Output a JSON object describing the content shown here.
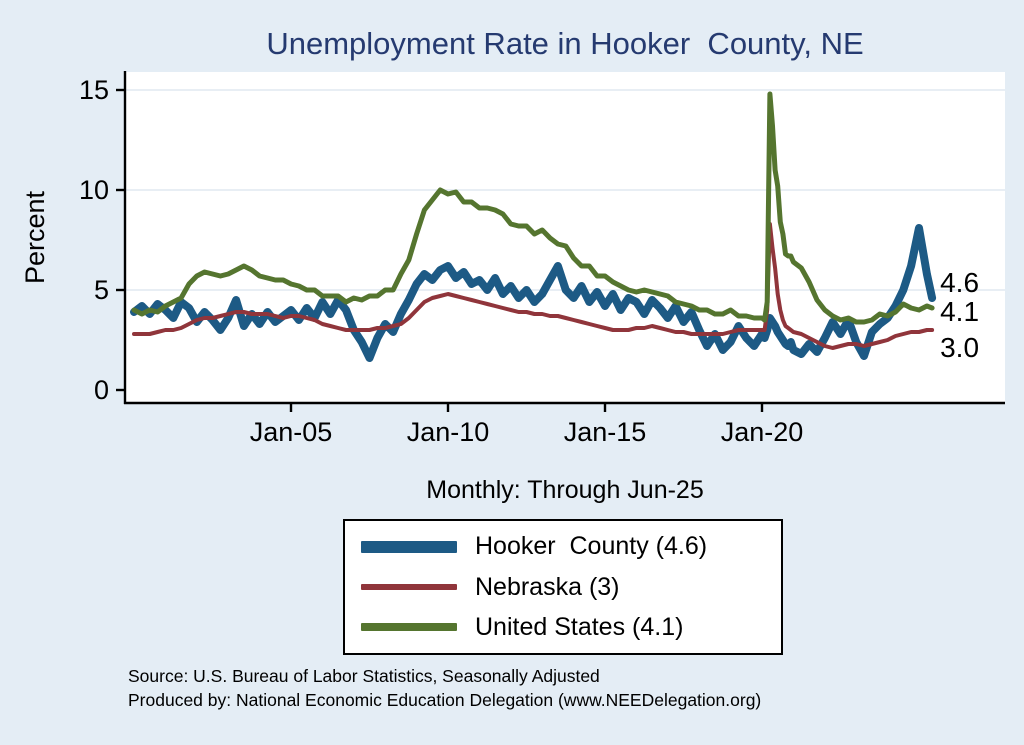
{
  "page": {
    "background": "#e4edf5"
  },
  "chart_data": {
    "type": "line",
    "title": "Unemployment Rate in Hooker  County, NE",
    "subtitle": "Monthly: Through Jun-25",
    "ylabel": "Percent",
    "xlabel": "",
    "x_unit": "decimal_year",
    "xlim": [
      1999.7,
      2026.2
    ],
    "ylim": [
      0,
      15.9
    ],
    "yticks": [
      0,
      5,
      10,
      15
    ],
    "xticks": [
      {
        "x": 2005,
        "label": "Jan-05"
      },
      {
        "x": 2010,
        "label": "Jan-10"
      },
      {
        "x": 2015,
        "label": "Jan-15"
      },
      {
        "x": 2020,
        "label": "Jan-20"
      }
    ],
    "grid_on": true,
    "grid_color": "#d9e4ee",
    "title_color": "#253a70",
    "legend_position": "below",
    "x": [
      2000,
      2000.25,
      2000.5,
      2000.75,
      2001,
      2001.25,
      2001.5,
      2001.75,
      2002,
      2002.25,
      2002.5,
      2002.75,
      2003,
      2003.25,
      2003.5,
      2003.75,
      2004,
      2004.25,
      2004.5,
      2004.75,
      2005,
      2005.25,
      2005.5,
      2005.75,
      2006,
      2006.25,
      2006.5,
      2006.75,
      2007,
      2007.25,
      2007.5,
      2007.75,
      2008,
      2008.25,
      2008.5,
      2008.75,
      2009,
      2009.25,
      2009.5,
      2009.75,
      2010,
      2010.25,
      2010.5,
      2010.75,
      2011,
      2011.25,
      2011.5,
      2011.75,
      2012,
      2012.25,
      2012.5,
      2012.75,
      2013,
      2013.25,
      2013.5,
      2013.75,
      2014,
      2014.25,
      2014.5,
      2014.75,
      2015,
      2015.25,
      2015.5,
      2015.75,
      2016,
      2016.25,
      2016.5,
      2016.75,
      2017,
      2017.25,
      2017.5,
      2017.75,
      2018,
      2018.25,
      2018.5,
      2018.75,
      2019,
      2019.25,
      2019.5,
      2019.75,
      2020,
      2020.083,
      2020.167,
      2020.25,
      2020.333,
      2020.417,
      2020.5,
      2020.583,
      2020.667,
      2020.75,
      2020.833,
      2020.917,
      2021,
      2021.25,
      2021.5,
      2021.75,
      2022,
      2022.25,
      2022.5,
      2022.75,
      2023,
      2023.25,
      2023.5,
      2023.75,
      2024,
      2024.25,
      2024.5,
      2024.75,
      2025,
      2025.25,
      2025.417
    ],
    "series": [
      {
        "name": "Hooker County",
        "legend_label": "Hooker  County (4.6)",
        "color": "#1d5a85",
        "line_width": 8,
        "end_label": "4.6",
        "end_label_y": 5.35,
        "values": [
          3.9,
          4.2,
          3.8,
          4.3,
          4.0,
          3.6,
          4.4,
          4.1,
          3.4,
          3.9,
          3.5,
          3.0,
          3.6,
          4.5,
          3.2,
          3.8,
          3.3,
          3.9,
          3.4,
          3.7,
          4.0,
          3.5,
          4.1,
          3.6,
          4.4,
          3.8,
          4.5,
          4.0,
          3.0,
          2.4,
          1.6,
          2.6,
          3.3,
          2.9,
          3.8,
          4.5,
          5.3,
          5.8,
          5.5,
          6.0,
          6.2,
          5.6,
          5.9,
          5.3,
          5.5,
          5.0,
          5.6,
          4.8,
          5.2,
          4.6,
          5.0,
          4.4,
          4.8,
          5.5,
          6.2,
          5.0,
          4.6,
          5.2,
          4.4,
          4.9,
          4.2,
          4.8,
          4.0,
          4.6,
          4.4,
          3.8,
          4.5,
          4.1,
          3.6,
          4.2,
          3.4,
          3.9,
          3.0,
          2.2,
          2.8,
          2.0,
          2.4,
          3.2,
          2.6,
          2.2,
          2.8,
          2.6,
          3.0,
          3.6,
          3.4,
          3.2,
          2.9,
          2.7,
          2.5,
          2.3,
          2.2,
          2.4,
          2.0,
          1.8,
          2.3,
          1.9,
          2.6,
          3.4,
          2.8,
          3.5,
          2.4,
          1.7,
          2.9,
          3.3,
          3.6,
          4.2,
          5.0,
          6.2,
          8.1,
          5.8,
          4.6
        ]
      },
      {
        "name": "Nebraska",
        "legend_label": "Nebraska (3)",
        "color": "#90353b",
        "line_width": 4,
        "end_label": "3.0",
        "end_label_y": 2.1,
        "values": [
          2.8,
          2.8,
          2.8,
          2.9,
          3.0,
          3.0,
          3.1,
          3.3,
          3.5,
          3.6,
          3.6,
          3.7,
          3.8,
          3.9,
          3.9,
          3.8,
          3.8,
          3.8,
          3.7,
          3.6,
          3.7,
          3.7,
          3.6,
          3.5,
          3.3,
          3.2,
          3.1,
          3.0,
          3.0,
          3.0,
          3.0,
          3.1,
          3.1,
          3.2,
          3.3,
          3.6,
          4.0,
          4.4,
          4.6,
          4.7,
          4.8,
          4.7,
          4.6,
          4.5,
          4.4,
          4.3,
          4.2,
          4.1,
          4.0,
          3.9,
          3.9,
          3.8,
          3.8,
          3.7,
          3.7,
          3.6,
          3.5,
          3.4,
          3.3,
          3.2,
          3.1,
          3.0,
          3.0,
          3.0,
          3.1,
          3.1,
          3.2,
          3.1,
          3.0,
          2.9,
          2.9,
          2.8,
          2.8,
          2.8,
          2.8,
          2.8,
          2.9,
          3.0,
          3.0,
          3.0,
          3.0,
          3.0,
          4.0,
          8.3,
          7.1,
          6.1,
          4.8,
          4.0,
          3.5,
          3.2,
          3.1,
          3.0,
          2.9,
          2.8,
          2.6,
          2.4,
          2.2,
          2.1,
          2.2,
          2.3,
          2.3,
          2.2,
          2.3,
          2.4,
          2.5,
          2.7,
          2.8,
          2.9,
          2.9,
          3.0,
          3.0
        ]
      },
      {
        "name": "United States",
        "legend_label": "United States (4.1)",
        "color": "#55752f",
        "line_width": 5,
        "end_label": "4.1",
        "end_label_y": 3.9,
        "values": [
          4.0,
          3.8,
          4.0,
          3.9,
          4.2,
          4.4,
          4.6,
          5.3,
          5.7,
          5.9,
          5.8,
          5.7,
          5.8,
          6.0,
          6.2,
          6.0,
          5.7,
          5.6,
          5.5,
          5.5,
          5.3,
          5.2,
          5.0,
          5.0,
          4.7,
          4.7,
          4.7,
          4.4,
          4.6,
          4.5,
          4.7,
          4.7,
          5.0,
          5.0,
          5.8,
          6.5,
          7.8,
          9.0,
          9.5,
          10.0,
          9.8,
          9.9,
          9.4,
          9.4,
          9.1,
          9.1,
          9.0,
          8.8,
          8.3,
          8.2,
          8.2,
          7.8,
          8.0,
          7.6,
          7.3,
          7.2,
          6.6,
          6.2,
          6.2,
          5.7,
          5.7,
          5.4,
          5.2,
          5.0,
          4.9,
          5.0,
          4.9,
          4.8,
          4.7,
          4.4,
          4.3,
          4.2,
          4.0,
          4.0,
          3.8,
          3.8,
          4.0,
          3.7,
          3.7,
          3.6,
          3.6,
          3.5,
          4.4,
          14.8,
          13.2,
          11.0,
          10.2,
          8.4,
          7.8,
          6.8,
          6.7,
          6.7,
          6.4,
          6.1,
          5.4,
          4.5,
          4.0,
          3.7,
          3.5,
          3.6,
          3.4,
          3.4,
          3.5,
          3.8,
          3.7,
          3.9,
          4.3,
          4.1,
          4.0,
          4.2,
          4.1
        ]
      }
    ]
  },
  "footer": {
    "source_line1": "Source: U.S. Bureau of Labor Statistics, Seasonally Adjusted",
    "source_line2": "Produced by: National Economic Education Delegation (www.NEEDelegation.org)"
  }
}
